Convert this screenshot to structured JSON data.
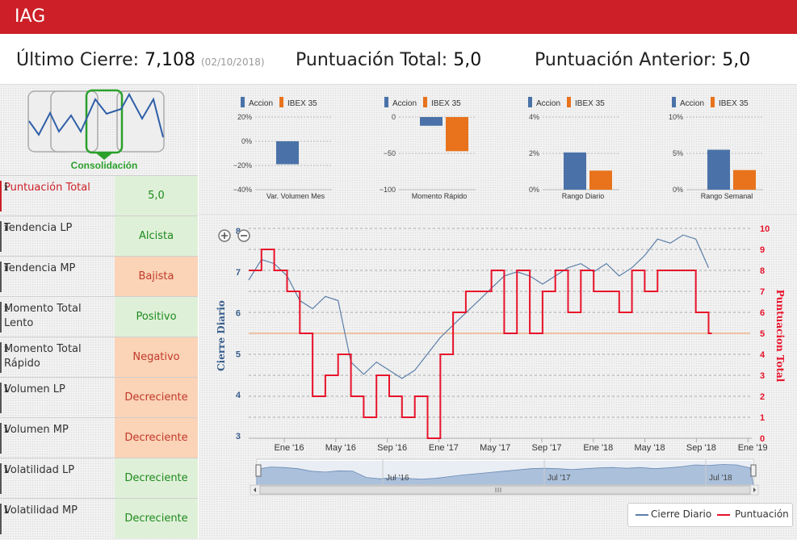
{
  "header": {
    "ticker": "IAG"
  },
  "summary": {
    "last_close_label": "Último Cierre:",
    "last_close_value": "7,108",
    "last_close_date": "(02/10/2018)",
    "total_label": "Puntuación Total:",
    "total_value": "5,0",
    "prev_label": "Puntuación Anterior:",
    "prev_value": "5,0"
  },
  "stage": {
    "label": "Consolidación"
  },
  "indicators": [
    {
      "label": "Puntuación Total",
      "value": "5,0",
      "state": "green",
      "highlight": true
    },
    {
      "label": "Tendencia LP",
      "value": "Alcista",
      "state": "green"
    },
    {
      "label": "Tendencia MP",
      "value": "Bajista",
      "state": "orange"
    },
    {
      "label": "Momento Total Lento",
      "value": "Positivo",
      "state": "green"
    },
    {
      "label": "Momento Total Rápido",
      "value": "Negativo",
      "state": "orange"
    },
    {
      "label": "Volumen LP",
      "value": "Decreciente",
      "state": "orange"
    },
    {
      "label": "Volumen MP",
      "value": "Decreciente",
      "state": "orange"
    },
    {
      "label": "Volatilidad LP",
      "value": "Decreciente",
      "state": "green"
    },
    {
      "label": "Volatilidad MP",
      "value": "Decreciente",
      "state": "green"
    }
  ],
  "icons": {
    "info": "info-icon",
    "zoom_in": "zoom-in-icon",
    "zoom_out": "zoom-out-icon"
  },
  "colors": {
    "brand": "#cc1f27",
    "accion": "#4a72a8",
    "ibex": "#e8731c",
    "cierre": "#5b7ea8",
    "puntuacion": "#e8132b",
    "threshold": "#f0b48a"
  },
  "chart_data": [
    {
      "type": "bar",
      "title": "Var. Volumen Mes",
      "series": [
        {
          "name": "Accion",
          "values": [
            -19
          ]
        },
        {
          "name": "IBEX 35",
          "values": [
            0
          ]
        }
      ],
      "ylim": [
        -40,
        20
      ],
      "ticks": [
        "20%",
        "0%",
        "−20%",
        "−40%"
      ]
    },
    {
      "type": "bar",
      "title": "Momento Rápido",
      "series": [
        {
          "name": "Accion",
          "values": [
            -12
          ]
        },
        {
          "name": "IBEX 35",
          "values": [
            -47
          ]
        }
      ],
      "ylim": [
        -100,
        0
      ],
      "ticks": [
        "0",
        "−50",
        "−100"
      ]
    },
    {
      "type": "bar",
      "title": "Rango Diario",
      "series": [
        {
          "name": "Accion",
          "values": [
            2.05
          ]
        },
        {
          "name": "IBEX 35",
          "values": [
            1.05
          ]
        }
      ],
      "ylim": [
        0,
        4
      ],
      "ticks": [
        "4%",
        "2%",
        "0%"
      ]
    },
    {
      "type": "bar",
      "title": "Rango Semanal",
      "series": [
        {
          "name": "Accion",
          "values": [
            5.5
          ]
        },
        {
          "name": "IBEX 35",
          "values": [
            2.7
          ]
        }
      ],
      "ylim": [
        0,
        10
      ],
      "ticks": [
        "10%",
        "5%",
        "0%"
      ]
    },
    {
      "type": "line",
      "title": "",
      "ylabel": "Cierre Diario",
      "y2label": "Puntuacion Total",
      "ylim": [
        3,
        8
      ],
      "y2lim": [
        0,
        10
      ],
      "y_ticks": [
        "3",
        "4",
        "5",
        "6",
        "7",
        "8"
      ],
      "y2_ticks": [
        "0",
        "1",
        "2",
        "3",
        "4",
        "5",
        "6",
        "7",
        "8",
        "9",
        "10"
      ],
      "x_ticks": [
        "Ene '16",
        "May '16",
        "Sep '16",
        "Ene '17",
        "May '17",
        "Sep '17",
        "Ene '18",
        "May '18",
        "Sep '18",
        "Ene '19"
      ],
      "threshold": 5,
      "series": [
        {
          "name": "Cierre Diario",
          "axis": "left",
          "x": [
            "2015-10",
            "2015-11",
            "2015-12",
            "2016-01",
            "2016-02",
            "2016-03",
            "2016-04",
            "2016-05",
            "2016-06",
            "2016-07",
            "2016-08",
            "2016-09",
            "2016-10",
            "2016-11",
            "2016-12",
            "2017-01",
            "2017-02",
            "2017-03",
            "2017-04",
            "2017-05",
            "2017-06",
            "2017-07",
            "2017-08",
            "2017-09",
            "2017-10",
            "2017-11",
            "2017-12",
            "2018-01",
            "2018-02",
            "2018-03",
            "2018-04",
            "2018-05",
            "2018-06",
            "2018-07",
            "2018-08",
            "2018-09",
            "2018-10"
          ],
          "values": [
            6.8,
            7.3,
            7.2,
            6.9,
            6.3,
            6.1,
            6.4,
            6.3,
            4.8,
            4.5,
            4.8,
            4.6,
            4.4,
            4.6,
            5.0,
            5.4,
            5.7,
            6.0,
            6.3,
            6.6,
            6.9,
            7.0,
            6.9,
            6.7,
            6.9,
            7.1,
            7.2,
            7.0,
            7.2,
            6.9,
            7.1,
            7.4,
            7.8,
            7.7,
            7.9,
            7.8,
            7.1
          ]
        },
        {
          "name": "Puntuación",
          "axis": "right",
          "x": [
            "2015-10",
            "2015-11",
            "2015-12",
            "2016-01",
            "2016-02",
            "2016-03",
            "2016-04",
            "2016-05",
            "2016-06",
            "2016-07",
            "2016-08",
            "2016-09",
            "2016-10",
            "2016-11",
            "2016-12",
            "2017-01",
            "2017-02",
            "2017-03",
            "2017-04",
            "2017-05",
            "2017-06",
            "2017-07",
            "2017-08",
            "2017-09",
            "2017-10",
            "2017-11",
            "2017-12",
            "2018-01",
            "2018-02",
            "2018-03",
            "2018-04",
            "2018-05",
            "2018-06",
            "2018-07",
            "2018-08",
            "2018-09",
            "2018-10"
          ],
          "values": [
            8,
            9,
            8,
            7,
            5,
            2,
            3,
            4,
            2,
            1,
            3,
            2,
            1,
            2,
            0,
            4,
            6,
            7,
            7,
            8,
            5,
            8,
            5,
            7,
            8,
            6,
            8,
            7,
            7,
            6,
            8,
            7,
            8,
            8,
            8,
            6,
            5
          ]
        }
      ],
      "navigator_ticks": [
        "Jul '16",
        "Jul '17",
        "Jul '18"
      ]
    }
  ],
  "legend": {
    "cierre": "Cierre Diario",
    "puntuacion": "Puntuación"
  }
}
